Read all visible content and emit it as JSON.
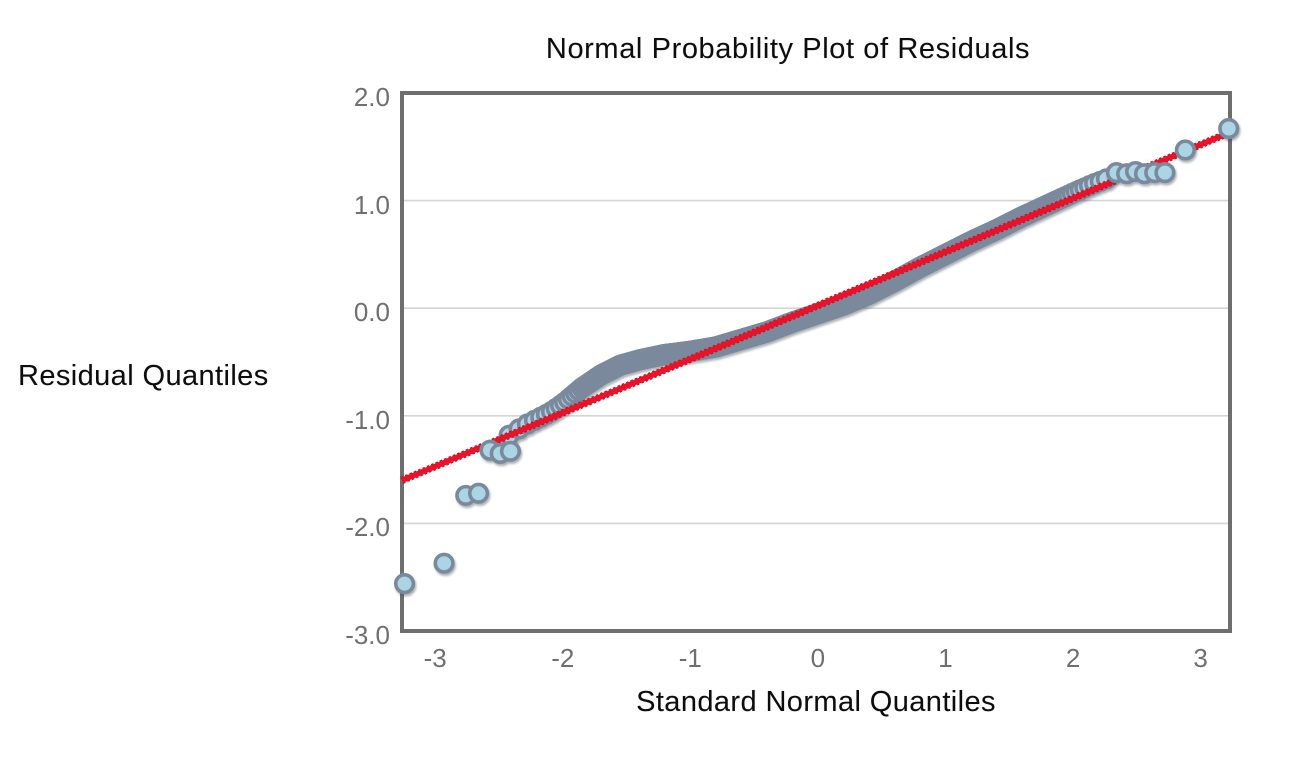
{
  "chart_data": {
    "type": "scatter",
    "title": "Normal Probability Plot of Residuals",
    "xlabel": "Standard Normal Quantiles",
    "ylabel": "Residual Quantiles",
    "xlim": [
      -3.26,
      3.23
    ],
    "ylim": [
      -3.0,
      2.0
    ],
    "x_ticks": [
      -3,
      -2,
      -1,
      0,
      1,
      2,
      3
    ],
    "x_tick_labels": [
      "-3",
      "-2",
      "-1",
      "0",
      "1",
      "2",
      "3"
    ],
    "y_ticks": [
      2,
      1,
      0,
      -1,
      -2,
      -3
    ],
    "y_tick_labels": [
      "2.0",
      "1.0",
      "0.0",
      "-1.0",
      "-2.0",
      "-3.0"
    ],
    "grid": "horizontal-gridlines-only",
    "legend": "none",
    "reference_line": {
      "name": "normal-fit-line",
      "x1": -3.26,
      "y1": -1.6,
      "x2": 3.22,
      "y2": 1.63,
      "equation": "y = 0.50x + 0.03"
    },
    "series": [
      {
        "name": "lower-tail-residuals",
        "points": [
          [
            -3.24,
            -2.56
          ],
          [
            -2.93,
            -2.37
          ],
          [
            -2.76,
            -1.74
          ],
          [
            -2.66,
            -1.72
          ],
          [
            -2.57,
            -1.32
          ],
          [
            -2.49,
            -1.35
          ],
          [
            -2.41,
            -1.33
          ]
        ]
      },
      {
        "name": "dense-residual-band",
        "note": "hundreds of overlapping points; centers follow band_curve with normal-quantile x spacing",
        "band_curve": [
          [
            -2.42,
            -1.18
          ],
          [
            -2.3,
            -1.09
          ],
          [
            -2.2,
            -1.03
          ],
          [
            -2.1,
            -0.97
          ],
          [
            -2.0,
            -0.89
          ],
          [
            -1.85,
            -0.74
          ],
          [
            -1.7,
            -0.62
          ],
          [
            -1.55,
            -0.53
          ],
          [
            -1.4,
            -0.48
          ],
          [
            -1.2,
            -0.43
          ],
          [
            -1.0,
            -0.4
          ],
          [
            -0.8,
            -0.36
          ],
          [
            -0.6,
            -0.29
          ],
          [
            -0.4,
            -0.22
          ],
          [
            -0.2,
            -0.13
          ],
          [
            0.0,
            -0.05
          ],
          [
            0.2,
            0.03
          ],
          [
            0.4,
            0.13
          ],
          [
            0.6,
            0.25
          ],
          [
            0.8,
            0.38
          ],
          [
            1.0,
            0.5
          ],
          [
            1.2,
            0.62
          ],
          [
            1.4,
            0.73
          ],
          [
            1.6,
            0.85
          ],
          [
            1.8,
            0.96
          ],
          [
            2.0,
            1.07
          ],
          [
            2.15,
            1.15
          ],
          [
            2.28,
            1.21
          ]
        ],
        "band_x_range": [
          -2.42,
          2.28
        ],
        "band_point_count": 600
      },
      {
        "name": "upper-tail-residuals",
        "points": [
          [
            2.34,
            1.26
          ],
          [
            2.42,
            1.25
          ],
          [
            2.49,
            1.27
          ],
          [
            2.56,
            1.25
          ],
          [
            2.64,
            1.26
          ],
          [
            2.72,
            1.26
          ],
          [
            2.88,
            1.47
          ],
          [
            3.22,
            1.67
          ]
        ]
      }
    ],
    "marker": {
      "radius": 8.8,
      "ring_width": 3.6
    }
  },
  "colors": {
    "background": "#ffffff",
    "frame": "#6e6e6e",
    "gridline": "#d5d5d5",
    "tick_text": "#6f6f6f",
    "label_text": "#0d0d0d",
    "marker_fill": "#abd4e4",
    "marker_ring": "#7a8a9c",
    "marker_shadow": "#2f3d49",
    "ref_line": "#ea1129",
    "ref_line_edge": "#c60e22"
  }
}
